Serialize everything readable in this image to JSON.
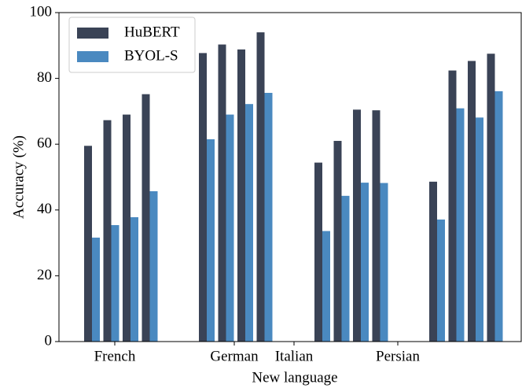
{
  "chart_data": {
    "type": "bar",
    "xlabel": "New language",
    "ylabel": "Accuracy (%)",
    "categories": [
      "French",
      "German",
      "Italian",
      "Persian"
    ],
    "series": [
      {
        "name": "HuBERT",
        "color": "#3a4356",
        "values": [
          [
            59.5,
            67.3,
            69.0,
            75.2
          ],
          [
            87.7,
            90.3,
            88.8,
            94.0
          ],
          [
            54.4,
            61.0,
            70.5,
            70.3
          ],
          [
            48.6,
            82.4,
            85.3,
            87.5
          ]
        ]
      },
      {
        "name": "BYOL-S",
        "color": "#4a89c0",
        "values": [
          [
            31.6,
            35.4,
            37.8,
            45.7
          ],
          [
            61.5,
            69.0,
            72.2,
            75.6
          ],
          [
            33.6,
            44.3,
            48.3,
            48.2
          ],
          [
            37.1,
            70.9,
            68.1,
            76.1
          ]
        ]
      }
    ],
    "ylim": [
      0,
      100
    ],
    "yticks": [
      0,
      20,
      40,
      60,
      80,
      100
    ],
    "legend": "upper left"
  }
}
